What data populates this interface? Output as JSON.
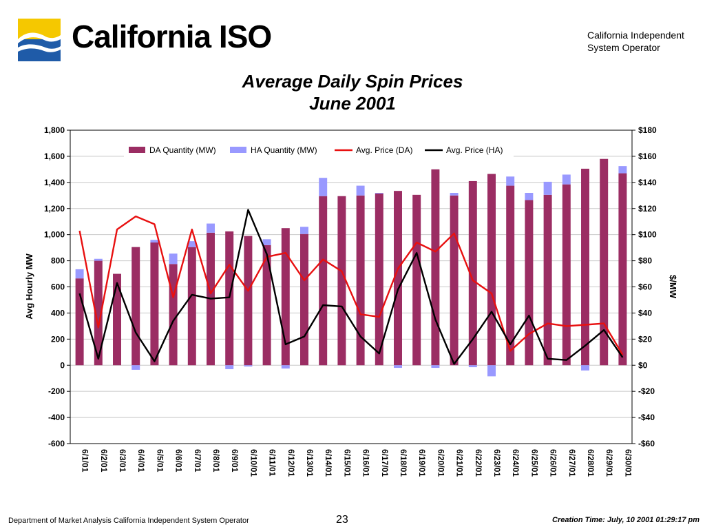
{
  "header": {
    "brand": "California ISO",
    "org_line1": "California Independent",
    "org_line2": "System Operator"
  },
  "colors": {
    "da_quantity": "#9B2D63",
    "ha_quantity": "#9999FF",
    "avg_price_da": "#E81010",
    "avg_price_ha": "#000000",
    "logo_yellow": "#F5C800",
    "logo_blue": "#1F5BA8"
  },
  "chart_data": {
    "type": "bar",
    "title": "Average Daily Spin Prices",
    "subtitle": "June 2001",
    "ylabel": "Avg Hourly MW",
    "y2label": "$/MW",
    "ylim": [
      -600,
      1800
    ],
    "y2lim": [
      -60,
      180
    ],
    "yticks": [
      -600,
      -400,
      -200,
      0,
      200,
      400,
      600,
      800,
      1000,
      1200,
      1400,
      1600,
      1800
    ],
    "ytick_labels": [
      "-600",
      "-400",
      "-200",
      "0",
      "200",
      "400",
      "600",
      "800",
      "1,000",
      "1,200",
      "1,400",
      "1,600",
      "1,800"
    ],
    "y2ticks": [
      -60,
      -40,
      -20,
      0,
      20,
      40,
      60,
      80,
      100,
      120,
      140,
      160,
      180
    ],
    "y2tick_labels": [
      "-$60",
      "-$40",
      "-$20",
      "$0",
      "$20",
      "$40",
      "$60",
      "$80",
      "$100",
      "$120",
      "$140",
      "$160",
      "$180"
    ],
    "grid": true,
    "legend_position": "top",
    "categories": [
      "6/1/01",
      "6/2/01",
      "6/3/01",
      "6/4/01",
      "6/5/01",
      "6/6/01",
      "6/7/01",
      "6/8/01",
      "6/9/01",
      "6/10/01",
      "6/11/01",
      "6/12/01",
      "6/13/01",
      "6/14/01",
      "6/15/01",
      "6/16/01",
      "6/17/01",
      "6/18/01",
      "6/19/01",
      "6/20/01",
      "6/21/01",
      "6/22/01",
      "6/23/01",
      "6/24/01",
      "6/25/01",
      "6/26/01",
      "6/27/01",
      "6/28/01",
      "6/29/01",
      "6/30/01"
    ],
    "series": [
      {
        "name": "DA Quantity (MW)",
        "kind": "bar",
        "axis": "left",
        "values": [
          665,
          800,
          700,
          905,
          940,
          775,
          905,
          1015,
          1025,
          990,
          920,
          1050,
          1005,
          1295,
          1295,
          1300,
          1315,
          1335,
          1305,
          1500,
          1300,
          1410,
          1465,
          1375,
          1265,
          1305,
          1385,
          1505,
          1580,
          1470
        ]
      },
      {
        "name": "HA Quantity (MW)",
        "kind": "bar",
        "axis": "left",
        "values": [
          70,
          15,
          0,
          -35,
          20,
          80,
          45,
          70,
          -30,
          -10,
          45,
          -25,
          55,
          140,
          0,
          75,
          5,
          -20,
          0,
          -20,
          20,
          -15,
          -85,
          70,
          55,
          100,
          75,
          -40,
          0,
          55
        ]
      },
      {
        "name": "Avg. Price (DA)",
        "kind": "line",
        "axis": "right",
        "values": [
          103,
          29,
          104,
          114,
          108,
          52,
          104,
          55,
          77,
          57,
          83,
          86,
          65,
          81,
          72,
          39,
          37,
          74,
          94,
          87,
          101,
          65,
          55,
          11,
          24,
          32,
          30,
          31,
          32,
          8
        ]
      },
      {
        "name": "Avg. Price (HA)",
        "kind": "line",
        "axis": "right",
        "values": [
          55,
          5,
          63,
          25,
          3,
          34,
          54,
          51,
          52,
          119,
          85,
          16,
          22,
          46,
          45,
          22,
          9,
          58,
          86,
          35,
          1,
          20,
          41,
          16,
          38,
          5,
          4,
          15,
          27,
          6
        ]
      }
    ]
  },
  "footer": {
    "left": "Department of Market Analysis California Independent System Operator",
    "page": "23",
    "right": "Creation Time: July, 10 2001 01:29:17 pm"
  }
}
